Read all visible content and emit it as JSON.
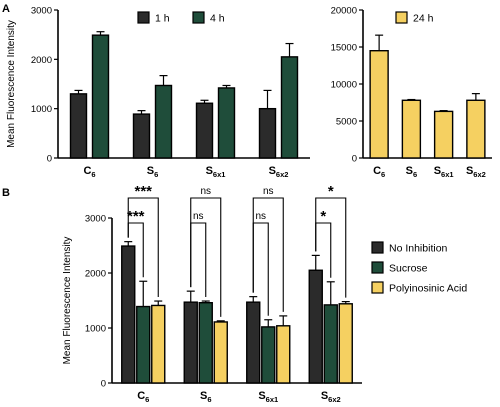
{
  "colors": {
    "black": "#2b2b2b",
    "green": "#1f4d3a",
    "yellow": "#f5d061",
    "yellow_border": "#8a6a1a"
  },
  "panel_labels": {
    "a": "A",
    "b": "B"
  },
  "chart_data": [
    {
      "type": "bar",
      "panel": "A-left",
      "categories": [
        {
          "main": "C",
          "sub": "6"
        },
        {
          "main": "S",
          "sub": "6"
        },
        {
          "main": "S",
          "sub": "6x1"
        },
        {
          "main": "S",
          "sub": "6x2"
        }
      ],
      "ylabel": "Mean Fluorescence Intensity",
      "ylim": [
        0,
        3000
      ],
      "yticks": [
        "0",
        "1000",
        "2000",
        "3000"
      ],
      "legend_position": "top",
      "series": [
        {
          "name": "1 h",
          "color": "#2b2b2b",
          "values": [
            1300,
            890,
            1110,
            1000
          ],
          "errors": [
            70,
            70,
            60,
            370
          ]
        },
        {
          "name": "4 h",
          "color": "#1f4d3a",
          "values": [
            2490,
            1470,
            1420,
            2050
          ],
          "errors": [
            70,
            200,
            50,
            270
          ]
        }
      ]
    },
    {
      "type": "bar",
      "panel": "A-right",
      "categories": [
        {
          "main": "C",
          "sub": "6"
        },
        {
          "main": "S",
          "sub": "6"
        },
        {
          "main": "S",
          "sub": "6x1"
        },
        {
          "main": "S",
          "sub": "6x2"
        }
      ],
      "ylim": [
        0,
        20000
      ],
      "yticks": [
        "0",
        "5000",
        "10000",
        "15000",
        "20000"
      ],
      "legend_position": "top",
      "series": [
        {
          "name": "24 h",
          "color": "#f5d061",
          "values": [
            14500,
            7800,
            6300,
            7800
          ],
          "errors": [
            2100,
            100,
            100,
            900
          ]
        }
      ]
    },
    {
      "type": "bar",
      "panel": "B",
      "categories": [
        {
          "main": "C",
          "sub": "6"
        },
        {
          "main": "S",
          "sub": "6"
        },
        {
          "main": "S",
          "sub": "6x1"
        },
        {
          "main": "S",
          "sub": "6x2"
        }
      ],
      "ylabel": "Mean Fluorescence Intensity",
      "ylim": [
        0,
        3000
      ],
      "yticks": [
        "0",
        "1000",
        "2000",
        "3000"
      ],
      "legend_position": "right",
      "series": [
        {
          "name": "No Inhibition",
          "color": "#2b2b2b",
          "values": [
            2490,
            1470,
            1470,
            2050
          ],
          "errors": [
            80,
            200,
            100,
            270
          ]
        },
        {
          "name": "Sucrose",
          "color": "#1f4d3a",
          "values": [
            1390,
            1460,
            1020,
            1420
          ],
          "errors": [
            460,
            30,
            130,
            420
          ]
        },
        {
          "name": "Polyinosinic Acid",
          "color": "#f5d061",
          "values": [
            1410,
            1110,
            1040,
            1440
          ],
          "errors": [
            80,
            20,
            180,
            40
          ]
        }
      ],
      "significance": [
        {
          "category": 0,
          "pair": [
            0,
            2
          ],
          "label": "***"
        },
        {
          "category": 0,
          "pair": [
            0,
            1
          ],
          "label": "***"
        },
        {
          "category": 1,
          "pair": [
            0,
            2
          ],
          "label": "ns"
        },
        {
          "category": 1,
          "pair": [
            0,
            1
          ],
          "label": "ns"
        },
        {
          "category": 2,
          "pair": [
            0,
            2
          ],
          "label": "ns"
        },
        {
          "category": 2,
          "pair": [
            0,
            1
          ],
          "label": "ns"
        },
        {
          "category": 3,
          "pair": [
            0,
            2
          ],
          "label": "*"
        },
        {
          "category": 3,
          "pair": [
            0,
            1
          ],
          "label": "*"
        }
      ]
    }
  ]
}
